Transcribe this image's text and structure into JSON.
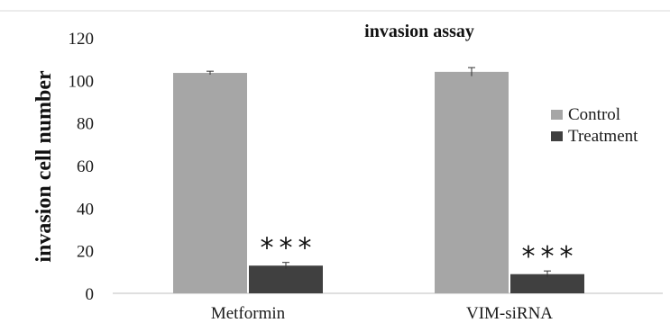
{
  "chart_data": {
    "type": "bar",
    "title": "invasion assay",
    "xlabel": "",
    "ylabel": "invasion cell number",
    "ylim": [
      0,
      120
    ],
    "yticks": [
      "0",
      "20",
      "40",
      "60",
      "80",
      "100",
      "120"
    ],
    "categories": [
      "Metformin",
      "VIM-siRNA"
    ],
    "series": [
      {
        "name": "Control",
        "color": "#a6a6a6",
        "values": [
          103.5,
          104
        ],
        "errors": [
          0.8,
          2
        ]
      },
      {
        "name": "Treatment",
        "color": "#404040",
        "values": [
          13,
          9
        ],
        "errors": [
          1.5,
          1.5
        ]
      }
    ],
    "annotations": [
      {
        "category": "Metformin",
        "series": "Treatment",
        "text": "***"
      },
      {
        "category": "VIM-siRNA",
        "series": "Treatment",
        "text": "***"
      }
    ],
    "legend_position": "right",
    "grid": false
  }
}
